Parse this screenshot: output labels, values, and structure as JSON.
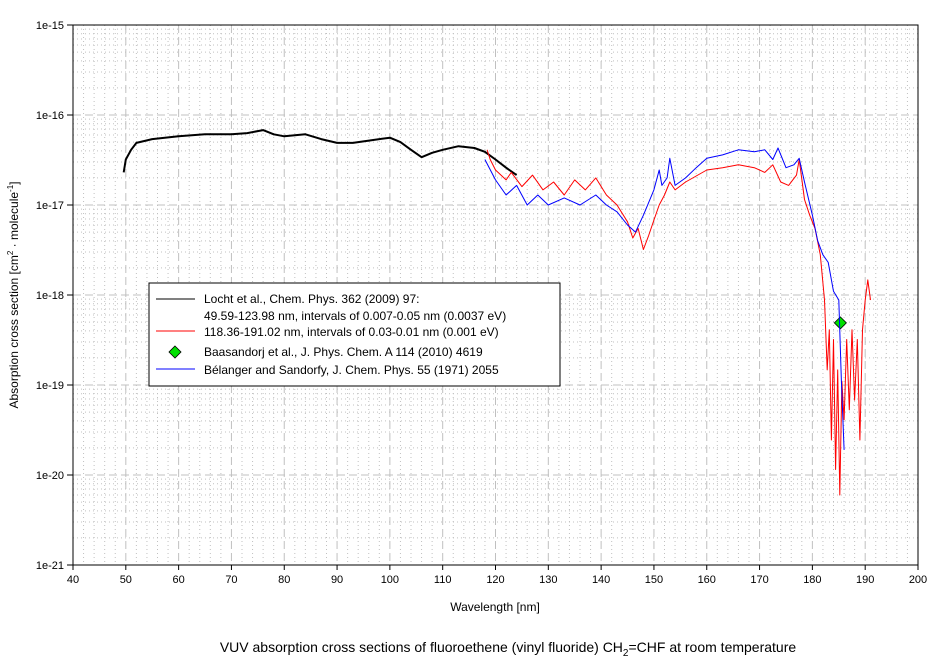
{
  "chart_data": {
    "type": "line",
    "title_parts": [
      "VUV absorption cross sections of fluoroethene (vinyl fluoride) CH",
      "2",
      "=CHF at room temperature"
    ],
    "xlabel": "Wavelength [nm]",
    "ylabel_parts": [
      "Absorption cross section [cm",
      "2",
      " · molecule",
      "-1",
      "]"
    ],
    "xlim": [
      40,
      200
    ],
    "ylim": [
      1e-21,
      1e-15
    ],
    "yscale": "log",
    "grid": true,
    "legend_placement": "center-left",
    "x_ticks": [
      40,
      50,
      60,
      70,
      80,
      90,
      100,
      110,
      120,
      130,
      140,
      150,
      160,
      170,
      180,
      190,
      200
    ],
    "y_ticks": [
      "1e-21",
      "1e-20",
      "1e-19",
      "1e-18",
      "1e-17",
      "1e-16",
      "1e-15"
    ],
    "series": [
      {
        "name": "Locht et al., Chem. Phys. 362 (2009) 97:",
        "name_line2": "49.59-123.98 nm, intervals of 0.007-0.05 nm (0.0037 eV)",
        "color": "#000000",
        "kind": "line",
        "points": [
          [
            49.6,
            2.3e-17
          ],
          [
            50,
            3.2e-17
          ],
          [
            51,
            4.1e-17
          ],
          [
            52,
            4.9e-17
          ],
          [
            55,
            5.4e-17
          ],
          [
            60,
            5.8e-17
          ],
          [
            65,
            6.1e-17
          ],
          [
            70,
            6.1e-17
          ],
          [
            73,
            6.3e-17
          ],
          [
            76,
            6.8e-17
          ],
          [
            78,
            6.1e-17
          ],
          [
            80,
            5.8e-17
          ],
          [
            84,
            6.1e-17
          ],
          [
            87,
            5.4e-17
          ],
          [
            90,
            4.9e-17
          ],
          [
            93,
            4.9e-17
          ],
          [
            96,
            5.2e-17
          ],
          [
            100,
            5.6e-17
          ],
          [
            102,
            5e-17
          ],
          [
            104,
            4.1e-17
          ],
          [
            106,
            3.4e-17
          ],
          [
            108,
            3.8e-17
          ],
          [
            110,
            4.1e-17
          ],
          [
            113,
            4.5e-17
          ],
          [
            116,
            4.3e-17
          ],
          [
            118,
            3.9e-17
          ],
          [
            120,
            3.2e-17
          ],
          [
            122,
            2.6e-17
          ],
          [
            124,
            2.15e-17
          ]
        ]
      },
      {
        "name": "118.36-191.02 nm, intervals of 0.03-0.01 nm (0.001 eV)",
        "color": "#ff0000",
        "kind": "line",
        "points": [
          [
            118.4,
            4.1e-17
          ],
          [
            119,
            3.2e-17
          ],
          [
            120,
            2.45e-17
          ],
          [
            122,
            1.9e-17
          ],
          [
            123,
            2.3e-17
          ],
          [
            125,
            1.6e-17
          ],
          [
            127,
            2.15e-17
          ],
          [
            129,
            1.47e-17
          ],
          [
            131,
            1.8e-17
          ],
          [
            133,
            1.29e-17
          ],
          [
            135,
            1.9e-17
          ],
          [
            137,
            1.47e-17
          ],
          [
            139,
            2e-17
          ],
          [
            141,
            1.29e-17
          ],
          [
            143,
            1e-17
          ],
          [
            145,
            6.5e-18
          ],
          [
            146,
            4.3e-18
          ],
          [
            147,
            5.5e-18
          ],
          [
            148,
            3.2e-18
          ],
          [
            149,
            4.6e-18
          ],
          [
            150,
            6.8e-18
          ],
          [
            151,
            1e-17
          ],
          [
            152,
            1.29e-17
          ],
          [
            153,
            1.8e-17
          ],
          [
            154,
            1.47e-17
          ],
          [
            156,
            1.8e-17
          ],
          [
            158,
            2.1e-17
          ],
          [
            160,
            2.45e-17
          ],
          [
            163,
            2.6e-17
          ],
          [
            166,
            2.8e-17
          ],
          [
            169,
            2.6e-17
          ],
          [
            171,
            2.3e-17
          ],
          [
            172.5,
            2.8e-17
          ],
          [
            174,
            1.8e-17
          ],
          [
            175.5,
            1.65e-17
          ],
          [
            177,
            2.15e-17
          ],
          [
            177.5,
            3.2e-17
          ],
          [
            178.5,
            1.15e-17
          ],
          [
            179.5,
            7.7e-18
          ],
          [
            180.5,
            5.5e-18
          ],
          [
            181.5,
            2.8e-18
          ],
          [
            182.3,
            8.8e-19
          ],
          [
            182.8,
            1.47e-19
          ],
          [
            183.2,
            4.1e-19
          ],
          [
            183.6,
            2.45e-20
          ],
          [
            184,
            3.2e-19
          ],
          [
            184.4,
            1.15e-20
          ],
          [
            184.8,
            1.47e-19
          ],
          [
            185.2,
            6e-21
          ],
          [
            185.6,
            1.1e-19
          ],
          [
            186,
            4.1e-20
          ],
          [
            186.5,
            3.2e-19
          ],
          [
            187,
            5.3e-20
          ],
          [
            187.5,
            4.1e-19
          ],
          [
            188,
            6.8e-20
          ],
          [
            188.5,
            3.2e-19
          ],
          [
            189,
            2.45e-20
          ],
          [
            189.5,
            4.1e-19
          ],
          [
            190,
            8.8e-19
          ],
          [
            190.5,
            1.47e-18
          ],
          [
            191,
            8.8e-19
          ]
        ]
      },
      {
        "name": "Baasandorj et al., J. Phys. Chem. A 114 (2010) 4619",
        "color": "#00e000",
        "kind": "marker",
        "points": [
          [
            185.3,
            4.9e-19
          ]
        ]
      },
      {
        "name": "Bélanger and Sandorfy, J. Chem. Phys. 55 (1971) 2055",
        "color": "#0000ff",
        "kind": "line",
        "points": [
          [
            118,
            3.2e-17
          ],
          [
            120,
            1.9e-17
          ],
          [
            122,
            1.29e-17
          ],
          [
            124,
            1.65e-17
          ],
          [
            126,
            1e-17
          ],
          [
            128,
            1.29e-17
          ],
          [
            130,
            1e-17
          ],
          [
            133,
            1.2e-17
          ],
          [
            136,
            1e-17
          ],
          [
            139,
            1.29e-17
          ],
          [
            141,
            1e-17
          ],
          [
            143,
            8.4e-18
          ],
          [
            145,
            6e-18
          ],
          [
            146.5,
            5e-18
          ],
          [
            148,
            7.7e-18
          ],
          [
            150,
            1.47e-17
          ],
          [
            151,
            2.45e-17
          ],
          [
            151.5,
            1.65e-17
          ],
          [
            152.5,
            2e-17
          ],
          [
            153,
            3.3e-17
          ],
          [
            154,
            1.65e-17
          ],
          [
            156,
            2e-17
          ],
          [
            158,
            2.6e-17
          ],
          [
            160,
            3.3e-17
          ],
          [
            163,
            3.6e-17
          ],
          [
            166,
            4.1e-17
          ],
          [
            169,
            3.9e-17
          ],
          [
            171,
            4.1e-17
          ],
          [
            172.5,
            3.2e-17
          ],
          [
            173.5,
            4.3e-17
          ],
          [
            175,
            2.6e-17
          ],
          [
            176.5,
            2.8e-17
          ],
          [
            177.5,
            3.3e-17
          ],
          [
            178.5,
            1.8e-17
          ],
          [
            180,
            7.7e-18
          ],
          [
            181,
            4e-18
          ],
          [
            182,
            2.8e-18
          ],
          [
            183,
            2.3e-18
          ],
          [
            184,
            1.1e-18
          ],
          [
            185,
            8.8e-19
          ],
          [
            185.5,
            1.1e-19
          ],
          [
            186,
            1.9e-20
          ]
        ]
      }
    ]
  }
}
